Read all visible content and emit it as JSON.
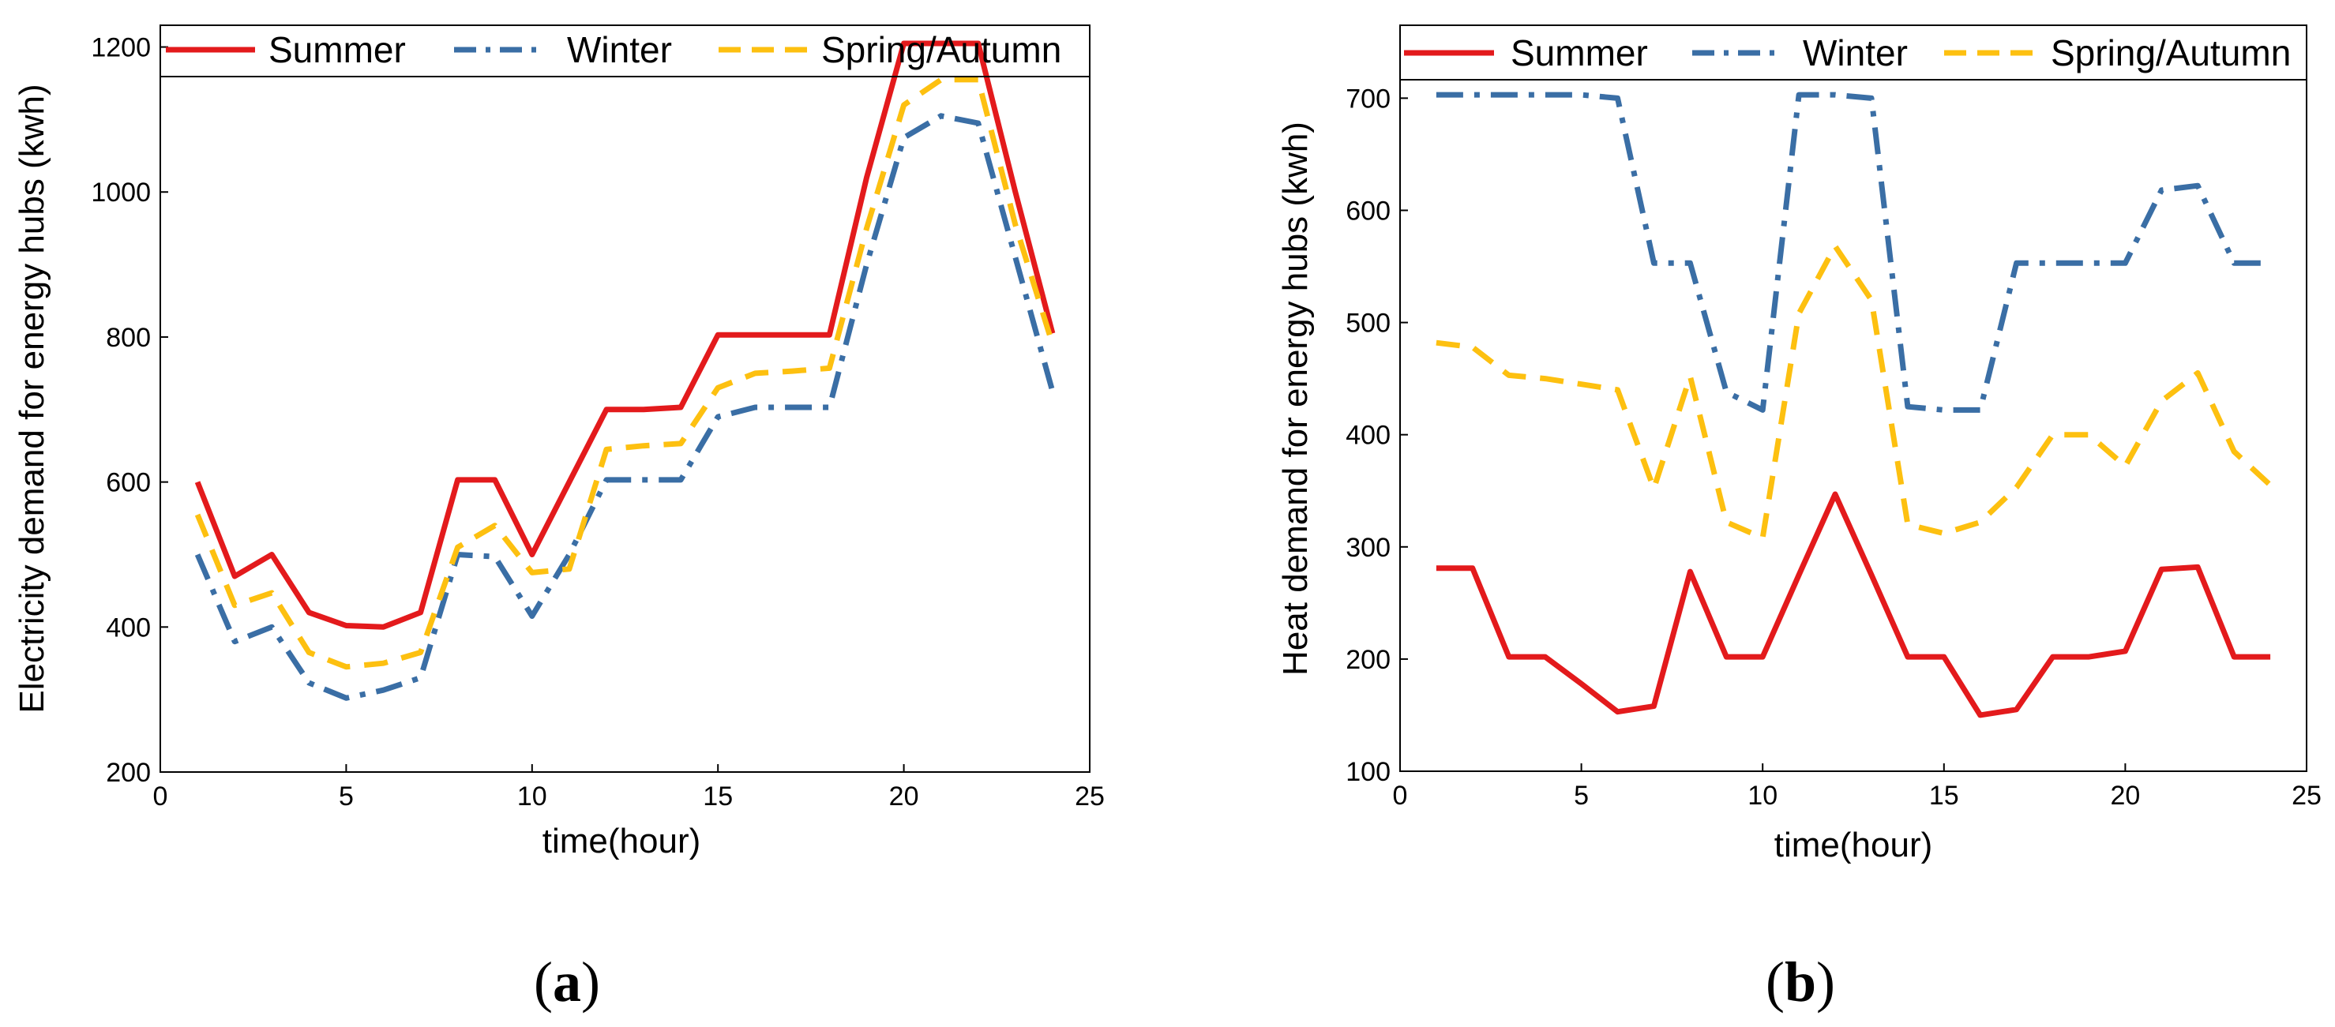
{
  "colors": {
    "summer": "#e31a1c",
    "winter": "#3a6ea5",
    "spring_autumn": "#fdc010"
  },
  "charts": [
    {
      "caption_open": "(",
      "caption_letter": "a",
      "caption_close": ")",
      "legend": [
        "Summer",
        "Winter",
        "Spring/Autumn"
      ]
    },
    {
      "caption_open": "(",
      "caption_letter": "b",
      "caption_close": ")",
      "legend": [
        "Summer",
        "Winter",
        "Spring/Autumn"
      ]
    }
  ],
  "chart_data": [
    {
      "type": "line",
      "title": "",
      "xlabel": "time(hour)",
      "ylabel": "Electricity demand for energy hubs (kwh)",
      "xlim": [
        0,
        25
      ],
      "ylim": [
        200,
        1230
      ],
      "xticks": [
        0,
        5,
        10,
        15,
        20,
        25
      ],
      "yticks": [
        200,
        400,
        600,
        800,
        1000,
        1200
      ],
      "legend_position": "top",
      "x": [
        1,
        2,
        3,
        4,
        5,
        6,
        7,
        8,
        9,
        10,
        11,
        12,
        13,
        14,
        15,
        16,
        17,
        18,
        19,
        20,
        21,
        22,
        23,
        24
      ],
      "series": [
        {
          "name": "Summer",
          "style": "solid",
          "values": [
            600,
            470,
            500,
            420,
            402,
            400,
            420,
            603,
            603,
            500,
            600,
            700,
            700,
            703,
            803,
            803,
            803,
            803,
            1020,
            1205,
            1205,
            1205,
            1000,
            805
          ]
        },
        {
          "name": "Winter",
          "style": "dashdot",
          "values": [
            500,
            380,
            400,
            323,
            302,
            313,
            330,
            500,
            497,
            415,
            500,
            603,
            603,
            603,
            690,
            703,
            703,
            703,
            900,
            1075,
            1105,
            1095,
            910,
            725
          ]
        },
        {
          "name": "Spring/Autumn",
          "style": "dashed",
          "values": [
            555,
            430,
            447,
            365,
            345,
            350,
            365,
            510,
            540,
            475,
            480,
            645,
            650,
            653,
            730,
            750,
            753,
            757,
            950,
            1120,
            1155,
            1155,
            955,
            790
          ]
        }
      ]
    },
    {
      "type": "line",
      "title": "",
      "xlabel": "time(hour)",
      "ylabel": "Heat demand for energy hubs (kwh)",
      "xlim": [
        0,
        25
      ],
      "ylim": [
        100,
        765
      ],
      "xticks": [
        0,
        5,
        10,
        15,
        20,
        25
      ],
      "yticks": [
        100,
        200,
        300,
        400,
        500,
        600,
        700
      ],
      "legend_position": "top",
      "x": [
        1,
        2,
        3,
        4,
        5,
        6,
        7,
        8,
        9,
        10,
        11,
        12,
        13,
        14,
        15,
        16,
        17,
        18,
        19,
        20,
        21,
        22,
        23,
        24
      ],
      "series": [
        {
          "name": "Summer",
          "style": "solid",
          "values": [
            281,
            281,
            202,
            202,
            178,
            153,
            158,
            278,
            202,
            202,
            275,
            347,
            275,
            202,
            202,
            150,
            155,
            202,
            202,
            207,
            280,
            282,
            202,
            202
          ]
        },
        {
          "name": "Winter",
          "style": "dashdot",
          "values": [
            703,
            703,
            703,
            703,
            703,
            700,
            553,
            553,
            438,
            422,
            703,
            703,
            700,
            425,
            422,
            422,
            553,
            553,
            553,
            553,
            618,
            622,
            553,
            553
          ]
        },
        {
          "name": "Spring/Autumn",
          "style": "dashed",
          "values": [
            482,
            478,
            453,
            450,
            445,
            440,
            352,
            452,
            322,
            308,
            508,
            568,
            520,
            320,
            312,
            322,
            353,
            400,
            400,
            372,
            430,
            455,
            385,
            355
          ]
        }
      ]
    }
  ]
}
